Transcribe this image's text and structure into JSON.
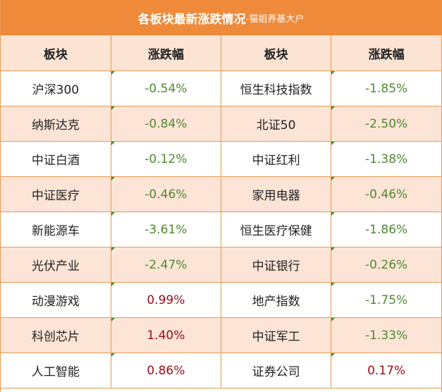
{
  "title": {
    "main": "各板块最新涨跌情况",
    "sub": "-猫姐养基大户"
  },
  "headers": [
    "板块",
    "涨跌幅",
    "板块",
    "涨跌幅"
  ],
  "rows": [
    {
      "left": {
        "name": "沪深300",
        "change": "-0.54%",
        "dir": "neg"
      },
      "right": {
        "name": "恒生科技指数",
        "change": "-1.85%",
        "dir": "neg"
      }
    },
    {
      "left": {
        "name": "纳斯达克",
        "change": "-0.84%",
        "dir": "neg"
      },
      "right": {
        "name": "北证50",
        "change": "-2.50%",
        "dir": "neg"
      }
    },
    {
      "left": {
        "name": "中证白酒",
        "change": "-0.12%",
        "dir": "neg"
      },
      "right": {
        "name": "中证红利",
        "change": "-1.38%",
        "dir": "neg"
      }
    },
    {
      "left": {
        "name": "中证医疗",
        "change": "-0.46%",
        "dir": "neg"
      },
      "right": {
        "name": "家用电器",
        "change": "-0.46%",
        "dir": "neg"
      }
    },
    {
      "left": {
        "name": "新能源车",
        "change": "-3.61%",
        "dir": "neg"
      },
      "right": {
        "name": "恒生医疗保健",
        "change": "-1.86%",
        "dir": "neg"
      }
    },
    {
      "left": {
        "name": "光伏产业",
        "change": "-2.47%",
        "dir": "neg"
      },
      "right": {
        "name": "中证银行",
        "change": "-0.26%",
        "dir": "neg"
      }
    },
    {
      "left": {
        "name": "动漫游戏",
        "change": "0.99%",
        "dir": "pos"
      },
      "right": {
        "name": "地产指数",
        "change": "-1.75%",
        "dir": "neg"
      }
    },
    {
      "left": {
        "name": "科创芯片",
        "change": "1.40%",
        "dir": "pos"
      },
      "right": {
        "name": "中证军工",
        "change": "-1.33%",
        "dir": "neg"
      }
    },
    {
      "left": {
        "name": "人工智能",
        "change": "0.86%",
        "dir": "pos"
      },
      "right": {
        "name": "证券公司",
        "change": "0.17%",
        "dir": "pos"
      }
    }
  ],
  "colors": {
    "header_bar": "#ef8a3a",
    "row_alt": "#fce4d6",
    "negative": "#4e8a2e",
    "positive": "#9c0a18",
    "border": "#e69a52"
  }
}
